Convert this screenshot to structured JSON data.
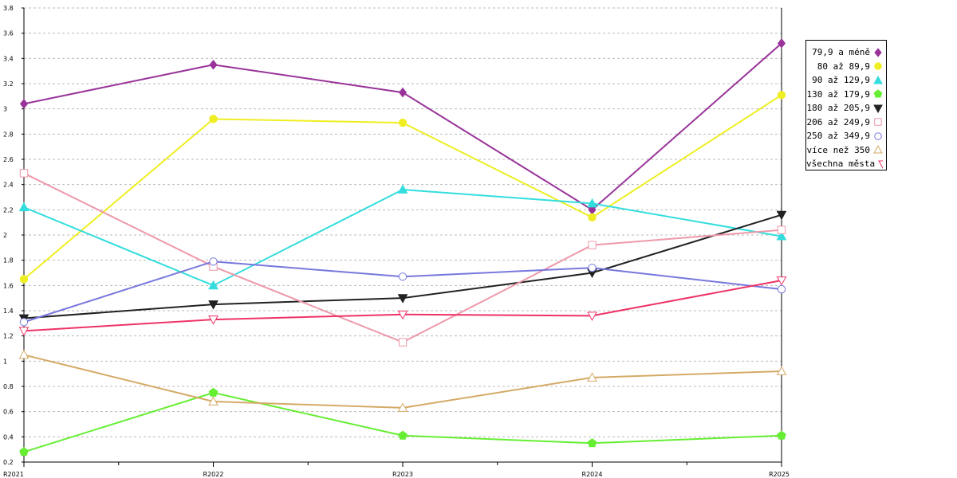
{
  "chart_data": {
    "type": "line",
    "title": "",
    "xlabel": "",
    "ylabel": "",
    "categories": [
      "R2021",
      "R2022",
      "R2023",
      "R2024",
      "R2025"
    ],
    "ylim": [
      0.2,
      3.8
    ],
    "yticks": [
      0.2,
      0.4,
      0.6,
      0.8,
      1,
      1.2,
      1.4,
      1.6,
      1.8,
      2,
      2.2,
      2.4,
      2.6,
      2.8,
      3,
      3.2,
      3.4,
      3.6,
      3.8
    ],
    "ytick_labels": [
      "0.2",
      "0.4",
      "0.6",
      "0.8",
      "1",
      "1.2",
      "1.4",
      "1.6",
      "1.8",
      "2",
      "2.2",
      "2.4",
      "2.6",
      "2.8",
      "3",
      "3.2",
      "3.4",
      "3.6",
      "3.8"
    ],
    "grid": true,
    "legend_position": "right",
    "series": [
      {
        "name": "79,9 a méně",
        "color": "#993399",
        "marker": "diamond",
        "values": [
          3.04,
          3.35,
          3.13,
          2.2,
          3.52
        ]
      },
      {
        "name": "80 až 89,9",
        "color": "#eeee22",
        "marker": "circle-filled",
        "values": [
          1.65,
          2.92,
          2.89,
          2.14,
          3.11
        ]
      },
      {
        "name": "90 až 129,9",
        "color": "#33dddd",
        "marker": "triangle-up-filled",
        "values": [
          2.22,
          1.6,
          2.36,
          2.25,
          1.99
        ]
      },
      {
        "name": "130 až 179,9",
        "color": "#66ee33",
        "marker": "pentagon-filled",
        "values": [
          0.28,
          0.75,
          0.41,
          0.35,
          0.41
        ]
      },
      {
        "name": "180 až 205,9",
        "color": "#222222",
        "marker": "triangle-down-filled",
        "values": [
          1.34,
          1.45,
          1.5,
          1.7,
          2.16
        ]
      },
      {
        "name": "206 až 249,9",
        "color": "#ee99aa",
        "marker": "square-open",
        "values": [
          2.49,
          1.75,
          1.15,
          1.92,
          2.04
        ]
      },
      {
        "name": "250 až 349,9",
        "color": "#7777dd",
        "marker": "circle-open",
        "values": [
          1.31,
          1.79,
          1.67,
          1.74,
          1.57
        ]
      },
      {
        "name": "více než 350",
        "color": "#d4aa66",
        "marker": "triangle-up-open",
        "values": [
          1.05,
          0.68,
          0.63,
          0.87,
          0.92
        ]
      },
      {
        "name": "všechna města",
        "color": "#ee3366",
        "marker": "triangle-down-open",
        "values": [
          1.24,
          1.33,
          1.37,
          1.36,
          1.64
        ]
      }
    ]
  }
}
